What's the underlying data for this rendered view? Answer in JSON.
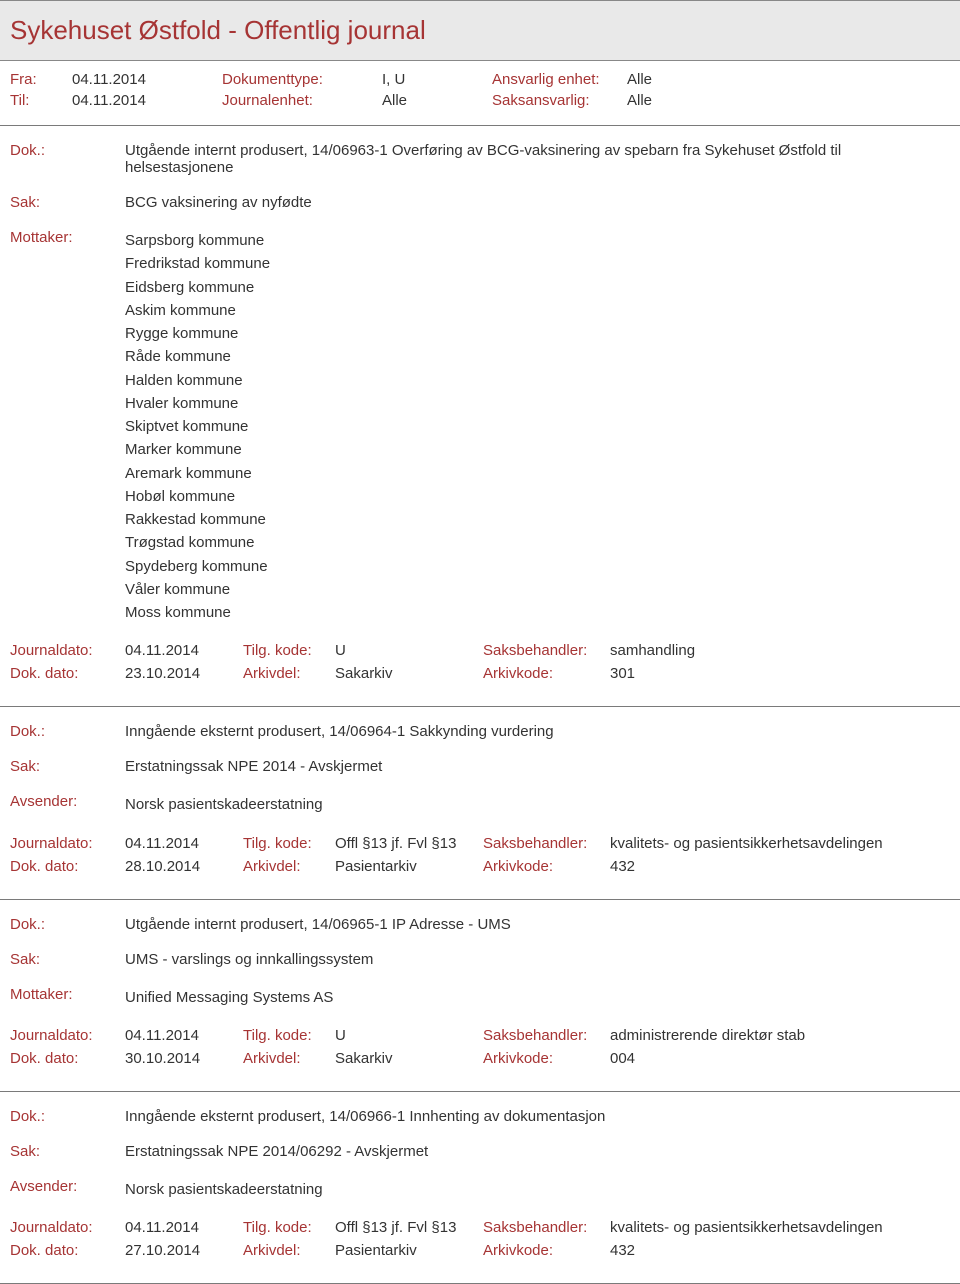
{
  "header": {
    "title": "Sykehuset Østfold - Offentlig journal"
  },
  "meta": {
    "fra_label": "Fra:",
    "fra_value": "04.11.2014",
    "til_label": "Til:",
    "til_value": "04.11.2014",
    "doktype_label": "Dokumenttype:",
    "doktype_value": "I, U",
    "journalenhet_label": "Journalenhet:",
    "journalenhet_value": "Alle",
    "ansvarlig_label": "Ansvarlig enhet:",
    "ansvarlig_value": "Alle",
    "saksansvarlig_label": "Saksansvarlig:",
    "saksansvarlig_value": "Alle"
  },
  "labels": {
    "dok": "Dok.:",
    "sak": "Sak:",
    "mottaker": "Mottaker:",
    "avsender": "Avsender:",
    "journaldato": "Journaldato:",
    "tilgkode": "Tilg. kode:",
    "saksbehandler": "Saksbehandler:",
    "dokdato": "Dok. dato:",
    "arkivdel": "Arkivdel:",
    "arkivkode": "Arkivkode:"
  },
  "entries": [
    {
      "dok": "Utgående internt produsert, 14/06963-1 Overføring av BCG-vaksinering av spebarn fra Sykehuset Østfold til helsestasjonene",
      "sak": "BCG vaksinering av nyfødte",
      "party_label_key": "mottaker",
      "party_values": [
        "Sarpsborg kommune",
        "Fredrikstad kommune",
        "Eidsberg kommune",
        "Askim kommune",
        "Rygge kommune",
        "Råde kommune",
        "Halden kommune",
        "Hvaler kommune",
        "Skiptvet kommune",
        "Marker kommune",
        "Aremark kommune",
        "Hobøl kommune",
        "Rakkestad kommune",
        "Trøgstad kommune",
        "Spydeberg kommune",
        "Våler kommune",
        "Moss kommune"
      ],
      "journaldato": "04.11.2014",
      "tilgkode": "U",
      "saksbehandler": "samhandling",
      "dokdato": "23.10.2014",
      "arkivdel": "Sakarkiv",
      "arkivkode": "301"
    },
    {
      "dok": "Inngående eksternt produsert, 14/06964-1 Sakkynding vurdering",
      "sak": "Erstatningssak NPE 2014 - Avskjermet",
      "party_label_key": "avsender",
      "party_values": [
        "Norsk pasientskadeerstatning"
      ],
      "journaldato": "04.11.2014",
      "tilgkode": "Offl §13 jf. Fvl §13",
      "saksbehandler": "kvalitets- og pasientsikkerhetsavdelingen",
      "dokdato": "28.10.2014",
      "arkivdel": "Pasientarkiv",
      "arkivkode": "432"
    },
    {
      "dok": "Utgående internt produsert, 14/06965-1 IP Adresse - UMS",
      "sak": "UMS - varslings og innkallingssystem",
      "party_label_key": "mottaker",
      "party_values": [
        "Unified Messaging Systems AS"
      ],
      "journaldato": "04.11.2014",
      "tilgkode": "U",
      "saksbehandler": "administrerende direktør stab",
      "dokdato": "30.10.2014",
      "arkivdel": "Sakarkiv",
      "arkivkode": "004"
    },
    {
      "dok": "Inngående eksternt produsert, 14/06966-1 Innhenting av dokumentasjon",
      "sak": "Erstatningssak NPE 2014/06292 - Avskjermet",
      "party_label_key": "avsender",
      "party_values": [
        "Norsk pasientskadeerstatning"
      ],
      "journaldato": "04.11.2014",
      "tilgkode": "Offl §13 jf. Fvl §13",
      "saksbehandler": "kvalitets- og pasientsikkerhetsavdelingen",
      "dokdato": "27.10.2014",
      "arkivdel": "Pasientarkiv",
      "arkivkode": "432"
    }
  ]
}
